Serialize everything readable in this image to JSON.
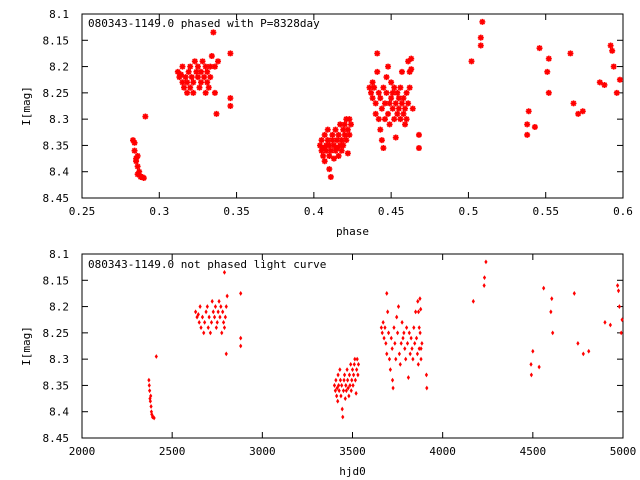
{
  "chart_data": [
    {
      "type": "scatter",
      "title": "080343-1149.0 phased with P=8328day",
      "xlabel": "phase",
      "ylabel": "I[mag]",
      "xlim": [
        0.25,
        0.6
      ],
      "ylim": [
        8.1,
        8.45
      ],
      "y_inverted": true,
      "xticks": [
        "0.25",
        "0.3",
        "0.35",
        "0.4",
        "0.45",
        "0.5",
        "0.55",
        "0.6"
      ],
      "yticks": [
        "8.1",
        "8.15",
        "8.2",
        "8.25",
        "8.3",
        "8.35",
        "8.4",
        "8.45"
      ],
      "marker": "star",
      "color": "#ff0000",
      "grid": false,
      "points": [
        [
          0.283,
          8.34
        ],
        [
          0.284,
          8.345
        ],
        [
          0.284,
          8.36
        ],
        [
          0.285,
          8.375
        ],
        [
          0.285,
          8.38
        ],
        [
          0.286,
          8.37
        ],
        [
          0.286,
          8.39
        ],
        [
          0.287,
          8.4
        ],
        [
          0.286,
          8.405
        ],
        [
          0.288,
          8.41
        ],
        [
          0.289,
          8.41
        ],
        [
          0.29,
          8.412
        ],
        [
          0.291,
          8.295
        ],
        [
          0.312,
          8.21
        ],
        [
          0.313,
          8.22
        ],
        [
          0.314,
          8.215
        ],
        [
          0.315,
          8.23
        ],
        [
          0.315,
          8.2
        ],
        [
          0.316,
          8.24
        ],
        [
          0.317,
          8.22
        ],
        [
          0.318,
          8.25
        ],
        [
          0.318,
          8.23
        ],
        [
          0.319,
          8.21
        ],
        [
          0.32,
          8.2
        ],
        [
          0.32,
          8.24
        ],
        [
          0.321,
          8.22
        ],
        [
          0.322,
          8.25
        ],
        [
          0.322,
          8.23
        ],
        [
          0.323,
          8.19
        ],
        [
          0.324,
          8.21
        ],
        [
          0.325,
          8.22
        ],
        [
          0.325,
          8.2
        ],
        [
          0.326,
          8.24
        ],
        [
          0.327,
          8.23
        ],
        [
          0.327,
          8.21
        ],
        [
          0.328,
          8.19
        ],
        [
          0.329,
          8.22
        ],
        [
          0.33,
          8.2
        ],
        [
          0.33,
          8.25
        ],
        [
          0.331,
          8.21
        ],
        [
          0.331,
          8.23
        ],
        [
          0.332,
          8.24
        ],
        [
          0.333,
          8.22
        ],
        [
          0.333,
          8.2
        ],
        [
          0.334,
          8.18
        ],
        [
          0.335,
          8.135
        ],
        [
          0.336,
          8.2
        ],
        [
          0.336,
          8.25
        ],
        [
          0.337,
          8.29
        ],
        [
          0.338,
          8.19
        ],
        [
          0.346,
          8.175
        ],
        [
          0.346,
          8.26
        ],
        [
          0.346,
          8.275
        ],
        [
          0.404,
          8.35
        ],
        [
          0.405,
          8.36
        ],
        [
          0.405,
          8.34
        ],
        [
          0.406,
          8.37
        ],
        [
          0.406,
          8.355
        ],
        [
          0.407,
          8.38
        ],
        [
          0.407,
          8.33
        ],
        [
          0.408,
          8.35
        ],
        [
          0.408,
          8.36
        ],
        [
          0.409,
          8.32
        ],
        [
          0.409,
          8.34
        ],
        [
          0.41,
          8.37
        ],
        [
          0.41,
          8.35
        ],
        [
          0.41,
          8.395
        ],
        [
          0.411,
          8.41
        ],
        [
          0.411,
          8.36
        ],
        [
          0.412,
          8.34
        ],
        [
          0.412,
          8.33
        ],
        [
          0.413,
          8.375
        ],
        [
          0.413,
          8.35
        ],
        [
          0.414,
          8.36
        ],
        [
          0.414,
          8.32
        ],
        [
          0.415,
          8.34
        ],
        [
          0.415,
          8.355
        ],
        [
          0.416,
          8.37
        ],
        [
          0.416,
          8.33
        ],
        [
          0.417,
          8.35
        ],
        [
          0.417,
          8.31
        ],
        [
          0.418,
          8.36
        ],
        [
          0.418,
          8.34
        ],
        [
          0.419,
          8.32
        ],
        [
          0.419,
          8.35
        ],
        [
          0.42,
          8.33
        ],
        [
          0.42,
          8.31
        ],
        [
          0.421,
          8.3
        ],
        [
          0.421,
          8.34
        ],
        [
          0.422,
          8.365
        ],
        [
          0.422,
          8.32
        ],
        [
          0.423,
          8.3
        ],
        [
          0.423,
          8.33
        ],
        [
          0.424,
          8.31
        ],
        [
          0.436,
          8.24
        ],
        [
          0.437,
          8.25
        ],
        [
          0.438,
          8.23
        ],
        [
          0.438,
          8.26
        ],
        [
          0.439,
          8.24
        ],
        [
          0.44,
          8.27
        ],
        [
          0.44,
          8.29
        ],
        [
          0.441,
          8.175
        ],
        [
          0.441,
          8.21
        ],
        [
          0.442,
          8.25
        ],
        [
          0.442,
          8.3
        ],
        [
          0.443,
          8.32
        ],
        [
          0.443,
          8.26
        ],
        [
          0.444,
          8.28
        ],
        [
          0.444,
          8.34
        ],
        [
          0.445,
          8.355
        ],
        [
          0.445,
          8.24
        ],
        [
          0.446,
          8.27
        ],
        [
          0.446,
          8.3
        ],
        [
          0.447,
          8.22
        ],
        [
          0.447,
          8.25
        ],
        [
          0.448,
          8.2
        ],
        [
          0.448,
          8.29
        ],
        [
          0.449,
          8.31
        ],
        [
          0.449,
          8.27
        ],
        [
          0.45,
          8.23
        ],
        [
          0.45,
          8.26
        ],
        [
          0.451,
          8.25
        ],
        [
          0.451,
          8.28
        ],
        [
          0.452,
          8.3
        ],
        [
          0.452,
          8.24
        ],
        [
          0.453,
          8.27
        ],
        [
          0.453,
          8.335
        ],
        [
          0.454,
          8.25
        ],
        [
          0.454,
          8.29
        ],
        [
          0.455,
          8.26
        ],
        [
          0.455,
          8.28
        ],
        [
          0.456,
          8.3
        ],
        [
          0.456,
          8.24
        ],
        [
          0.457,
          8.27
        ],
        [
          0.457,
          8.21
        ],
        [
          0.458,
          8.26
        ],
        [
          0.458,
          8.29
        ],
        [
          0.459,
          8.31
        ],
        [
          0.459,
          8.28
        ],
        [
          0.46,
          8.25
        ],
        [
          0.46,
          8.3
        ],
        [
          0.461,
          8.27
        ],
        [
          0.461,
          8.19
        ],
        [
          0.462,
          8.21
        ],
        [
          0.462,
          8.24
        ],
        [
          0.463,
          8.185
        ],
        [
          0.463,
          8.205
        ],
        [
          0.464,
          8.28
        ],
        [
          0.468,
          8.33
        ],
        [
          0.468,
          8.355
        ],
        [
          0.502,
          8.19
        ],
        [
          0.508,
          8.16
        ],
        [
          0.508,
          8.145
        ],
        [
          0.509,
          8.115
        ],
        [
          0.538,
          8.31
        ],
        [
          0.538,
          8.33
        ],
        [
          0.539,
          8.285
        ],
        [
          0.543,
          8.315
        ],
        [
          0.546,
          8.165
        ],
        [
          0.551,
          8.21
        ],
        [
          0.552,
          8.185
        ],
        [
          0.552,
          8.25
        ],
        [
          0.566,
          8.175
        ],
        [
          0.568,
          8.27
        ],
        [
          0.571,
          8.29
        ],
        [
          0.574,
          8.285
        ],
        [
          0.585,
          8.23
        ],
        [
          0.588,
          8.235
        ],
        [
          0.592,
          8.16
        ],
        [
          0.593,
          8.17
        ],
        [
          0.594,
          8.2
        ],
        [
          0.596,
          8.25
        ],
        [
          0.598,
          8.225
        ]
      ]
    },
    {
      "type": "scatter",
      "title": "080343-1149.0 not phased light curve",
      "xlabel": "hjd0",
      "ylabel": "I[mag]",
      "xlim": [
        2000,
        5000
      ],
      "ylim": [
        8.1,
        8.45
      ],
      "y_inverted": true,
      "xticks": [
        "2000",
        "2500",
        "3000",
        "3500",
        "4000",
        "4500",
        "5000"
      ],
      "yticks": [
        "8.1",
        "8.15",
        "8.2",
        "8.25",
        "8.3",
        "8.35",
        "8.4",
        "8.45"
      ],
      "marker": "dot",
      "color": "#ff0000",
      "grid": false,
      "points": [
        [
          2371,
          8.34
        ],
        [
          2373,
          8.35
        ],
        [
          2375,
          8.36
        ],
        [
          2377,
          8.375
        ],
        [
          2379,
          8.38
        ],
        [
          2381,
          8.37
        ],
        [
          2383,
          8.39
        ],
        [
          2385,
          8.4
        ],
        [
          2387,
          8.405
        ],
        [
          2391,
          8.41
        ],
        [
          2395,
          8.41
        ],
        [
          2400,
          8.412
        ],
        [
          2412,
          8.295
        ],
        [
          2630,
          8.21
        ],
        [
          2638,
          8.22
        ],
        [
          2645,
          8.215
        ],
        [
          2650,
          8.23
        ],
        [
          2655,
          8.2
        ],
        [
          2660,
          8.24
        ],
        [
          2668,
          8.22
        ],
        [
          2675,
          8.25
        ],
        [
          2680,
          8.23
        ],
        [
          2688,
          8.21
        ],
        [
          2695,
          8.2
        ],
        [
          2700,
          8.24
        ],
        [
          2705,
          8.22
        ],
        [
          2712,
          8.25
        ],
        [
          2718,
          8.23
        ],
        [
          2722,
          8.19
        ],
        [
          2728,
          8.21
        ],
        [
          2735,
          8.22
        ],
        [
          2740,
          8.2
        ],
        [
          2745,
          8.24
        ],
        [
          2750,
          8.23
        ],
        [
          2755,
          8.21
        ],
        [
          2760,
          8.19
        ],
        [
          2765,
          8.22
        ],
        [
          2770,
          8.2
        ],
        [
          2775,
          8.25
        ],
        [
          2780,
          8.21
        ],
        [
          2785,
          8.23
        ],
        [
          2790,
          8.24
        ],
        [
          2795,
          8.22
        ],
        [
          2800,
          8.2
        ],
        [
          2805,
          8.18
        ],
        [
          2790,
          8.135
        ],
        [
          2800,
          8.29
        ],
        [
          2880,
          8.175
        ],
        [
          2880,
          8.26
        ],
        [
          2880,
          8.275
        ],
        [
          3400,
          8.35
        ],
        [
          3405,
          8.36
        ],
        [
          3408,
          8.34
        ],
        [
          3412,
          8.37
        ],
        [
          3415,
          8.355
        ],
        [
          3418,
          8.38
        ],
        [
          3420,
          8.33
        ],
        [
          3423,
          8.35
        ],
        [
          3426,
          8.36
        ],
        [
          3430,
          8.32
        ],
        [
          3433,
          8.34
        ],
        [
          3436,
          8.37
        ],
        [
          3440,
          8.35
        ],
        [
          3443,
          8.395
        ],
        [
          3446,
          8.41
        ],
        [
          3450,
          8.36
        ],
        [
          3453,
          8.34
        ],
        [
          3456,
          8.33
        ],
        [
          3460,
          8.375
        ],
        [
          3463,
          8.35
        ],
        [
          3466,
          8.36
        ],
        [
          3470,
          8.32
        ],
        [
          3473,
          8.34
        ],
        [
          3476,
          8.355
        ],
        [
          3480,
          8.37
        ],
        [
          3483,
          8.33
        ],
        [
          3486,
          8.35
        ],
        [
          3490,
          8.31
        ],
        [
          3493,
          8.36
        ],
        [
          3496,
          8.34
        ],
        [
          3500,
          8.32
        ],
        [
          3503,
          8.35
        ],
        [
          3506,
          8.33
        ],
        [
          3510,
          8.31
        ],
        [
          3513,
          8.3
        ],
        [
          3516,
          8.34
        ],
        [
          3520,
          8.365
        ],
        [
          3523,
          8.32
        ],
        [
          3526,
          8.3
        ],
        [
          3530,
          8.33
        ],
        [
          3533,
          8.31
        ],
        [
          3660,
          8.24
        ],
        [
          3665,
          8.25
        ],
        [
          3670,
          8.23
        ],
        [
          3675,
          8.26
        ],
        [
          3680,
          8.24
        ],
        [
          3685,
          8.27
        ],
        [
          3690,
          8.29
        ],
        [
          3690,
          8.175
        ],
        [
          3695,
          8.21
        ],
        [
          3700,
          8.25
        ],
        [
          3705,
          8.3
        ],
        [
          3710,
          8.32
        ],
        [
          3715,
          8.26
        ],
        [
          3720,
          8.28
        ],
        [
          3722,
          8.34
        ],
        [
          3725,
          8.355
        ],
        [
          3730,
          8.24
        ],
        [
          3735,
          8.27
        ],
        [
          3740,
          8.3
        ],
        [
          3745,
          8.22
        ],
        [
          3750,
          8.25
        ],
        [
          3755,
          8.2
        ],
        [
          3760,
          8.29
        ],
        [
          3765,
          8.31
        ],
        [
          3770,
          8.27
        ],
        [
          3775,
          8.23
        ],
        [
          3780,
          8.26
        ],
        [
          3785,
          8.25
        ],
        [
          3790,
          8.28
        ],
        [
          3795,
          8.3
        ],
        [
          3800,
          8.24
        ],
        [
          3805,
          8.27
        ],
        [
          3810,
          8.335
        ],
        [
          3815,
          8.25
        ],
        [
          3820,
          8.29
        ],
        [
          3825,
          8.26
        ],
        [
          3830,
          8.28
        ],
        [
          3835,
          8.3
        ],
        [
          3840,
          8.24
        ],
        [
          3845,
          8.27
        ],
        [
          3850,
          8.21
        ],
        [
          3855,
          8.26
        ],
        [
          3860,
          8.29
        ],
        [
          3865,
          8.31
        ],
        [
          3870,
          8.28
        ],
        [
          3875,
          8.25
        ],
        [
          3880,
          8.3
        ],
        [
          3885,
          8.27
        ],
        [
          3862,
          8.19
        ],
        [
          3866,
          8.21
        ],
        [
          3870,
          8.24
        ],
        [
          3874,
          8.185
        ],
        [
          3878,
          8.205
        ],
        [
          3880,
          8.28
        ],
        [
          3910,
          8.33
        ],
        [
          3912,
          8.355
        ],
        [
          4170,
          8.19
        ],
        [
          4230,
          8.16
        ],
        [
          4232,
          8.145
        ],
        [
          4240,
          8.115
        ],
        [
          4490,
          8.31
        ],
        [
          4492,
          8.33
        ],
        [
          4500,
          8.285
        ],
        [
          4535,
          8.315
        ],
        [
          4560,
          8.165
        ],
        [
          4600,
          8.21
        ],
        [
          4605,
          8.185
        ],
        [
          4610,
          8.25
        ],
        [
          4730,
          8.175
        ],
        [
          4750,
          8.27
        ],
        [
          4780,
          8.29
        ],
        [
          4810,
          8.285
        ],
        [
          4900,
          8.23
        ],
        [
          4930,
          8.235
        ],
        [
          4970,
          8.16
        ],
        [
          4975,
          8.17
        ],
        [
          4980,
          8.2
        ],
        [
          4990,
          8.25
        ],
        [
          4995,
          8.225
        ]
      ]
    }
  ]
}
